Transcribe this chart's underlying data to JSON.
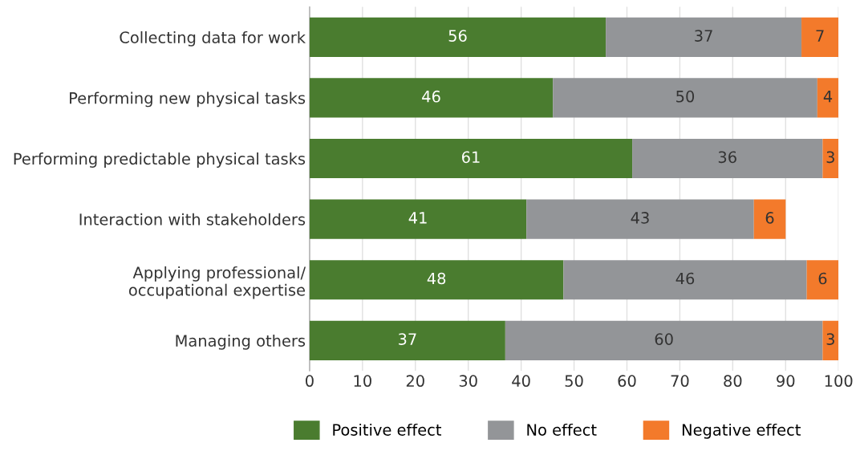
{
  "chart_data": {
    "type": "bar",
    "orientation": "horizontal",
    "stacked": true,
    "categories": [
      "Collecting data for work",
      "Performing new physical tasks",
      "Performing predictable physical tasks",
      "Interaction with stakeholders",
      "Applying professional/\noccupational expertise",
      "Managing others"
    ],
    "series": [
      {
        "name": "Positive effect",
        "color": "#4a7c2f",
        "values": [
          56,
          46,
          61,
          41,
          48,
          37
        ]
      },
      {
        "name": "No effect",
        "color": "#939598",
        "values": [
          37,
          50,
          36,
          43,
          46,
          60
        ]
      },
      {
        "name": "Negative effect",
        "color": "#f37a2b",
        "values": [
          7,
          4,
          3,
          6,
          6,
          3
        ]
      }
    ],
    "xlim": [
      0,
      100
    ],
    "xticks": [
      0,
      10,
      20,
      30,
      40,
      50,
      60,
      70,
      80,
      90,
      100
    ],
    "grid": "x",
    "legend": "bottom",
    "data_labels": true
  }
}
